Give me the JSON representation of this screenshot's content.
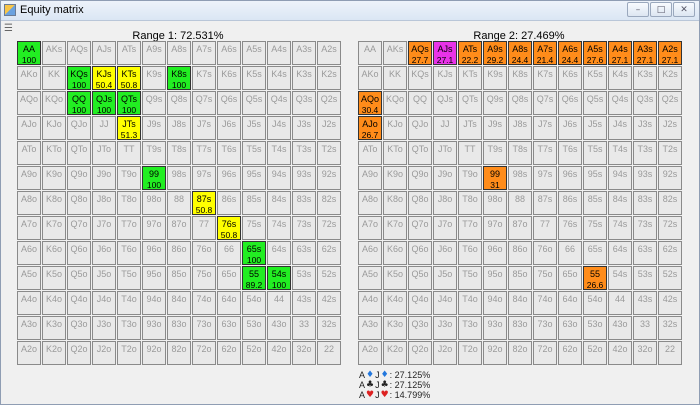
{
  "window": {
    "title": "Equity matrix",
    "min": "–",
    "max": "□",
    "close": "✕"
  },
  "range1": {
    "title": "Range 1: 72.531%",
    "cells": {
      "AA": {
        "pct": "100",
        "color": "green"
      },
      "KQs": {
        "pct": "100",
        "color": "green"
      },
      "KJs": {
        "pct": "50.4",
        "color": "yellow"
      },
      "KTs": {
        "pct": "50.8",
        "color": "yellow"
      },
      "K8s": {
        "pct": "100",
        "color": "green"
      },
      "QQ": {
        "pct": "100",
        "color": "green"
      },
      "QJs": {
        "pct": "100",
        "color": "green"
      },
      "QTs": {
        "pct": "100",
        "color": "green"
      },
      "JTs": {
        "pct": "51.3",
        "color": "yellow"
      },
      "99": {
        "pct": "100",
        "color": "green"
      },
      "87s": {
        "pct": "50.8",
        "color": "yellow"
      },
      "76s": {
        "pct": "50.8",
        "color": "yellow"
      },
      "65s": {
        "pct": "100",
        "color": "green"
      },
      "55": {
        "pct": "89.2",
        "color": "green"
      },
      "54s": {
        "pct": "100",
        "color": "green"
      }
    }
  },
  "range2": {
    "title": "Range 2: 27.469%",
    "cells": {
      "AQs": {
        "pct": "27.7",
        "color": "orange"
      },
      "AJs": {
        "pct": "27.1",
        "color": "magenta"
      },
      "ATs": {
        "pct": "22.2",
        "color": "orange"
      },
      "A9s": {
        "pct": "29.2",
        "color": "orange"
      },
      "A8s": {
        "pct": "24.4",
        "color": "orange"
      },
      "A7s": {
        "pct": "21.4",
        "color": "orange"
      },
      "A6s": {
        "pct": "24.4",
        "color": "orange"
      },
      "A5s": {
        "pct": "27.6",
        "color": "orange"
      },
      "A4s": {
        "pct": "27.1",
        "color": "orange"
      },
      "A3s": {
        "pct": "27.1",
        "color": "orange"
      },
      "A2s": {
        "pct": "27.1",
        "color": "orange"
      },
      "AQo": {
        "pct": "30.4",
        "color": "orange"
      },
      "AJo": {
        "pct": "26.7",
        "color": "orange"
      },
      "99": {
        "pct": "31",
        "color": "orange"
      },
      "55": {
        "pct": "26.6",
        "color": "orange"
      }
    }
  },
  "colors": {
    "green": "#22ee22",
    "yellow": "#ffff00",
    "orange": "#ff8c1a",
    "magenta": "#e833e8"
  },
  "stats": [
    {
      "rank": "A",
      "suit1": "♦",
      "suit1_color": "#2277dd",
      "rank2": "J",
      "suit2": "♦",
      "suit2_color": "#2277dd",
      "value": ": 27.125%"
    },
    {
      "rank": "A",
      "suit1": "♣",
      "suit1_color": "#222222",
      "rank2": "J",
      "suit2": "♣",
      "suit2_color": "#222222",
      "value": ": 27.125%"
    },
    {
      "rank": "A",
      "suit1": "♥",
      "suit1_color": "#dd2222",
      "rank2": "J",
      "suit2": "♥",
      "suit2_color": "#dd2222",
      "value": ": 14.799%"
    }
  ]
}
